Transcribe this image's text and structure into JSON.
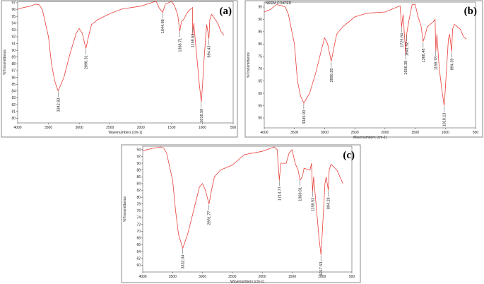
{
  "chart_data": [
    {
      "type": "line",
      "panel_label": "(a)",
      "title": "",
      "xlabel": "Wavenumbers (cm-1)",
      "ylabel": "%Transmittance",
      "xlim": [
        4000,
        500
      ],
      "ylim": [
        79.3,
        97.2
      ],
      "xticks": [
        4000,
        3500,
        3000,
        2500,
        2000,
        1500,
        1000,
        500
      ],
      "yticks": [
        80,
        81,
        82,
        83,
        84,
        85,
        86,
        87,
        88,
        89,
        90,
        91,
        92,
        93,
        94,
        95,
        96,
        97
      ],
      "color": "#e8413b",
      "grid": false,
      "x": [
        4000,
        3800,
        3700,
        3650,
        3600,
        3500,
        3450,
        3400,
        3342,
        3250,
        3150,
        3050,
        3000,
        2950,
        2900,
        2890,
        2850,
        2800,
        2700,
        2500,
        2300,
        2000,
        1800,
        1750,
        1700,
        1644,
        1600,
        1500,
        1450,
        1400,
        1368,
        1340,
        1300,
        1250,
        1200,
        1160,
        1158,
        1140,
        1100,
        1050,
        1018,
        1000,
        970,
        930,
        894,
        880,
        850,
        750,
        700,
        650
      ],
      "y": [
        96.1,
        96.5,
        96.8,
        96.7,
        96,
        92,
        88,
        85.5,
        84,
        86,
        89.5,
        92.5,
        93.2,
        92.5,
        90.5,
        90.3,
        92,
        93.8,
        94.5,
        95.4,
        96.1,
        96.5,
        97.1,
        97.2,
        96.2,
        95.6,
        96.8,
        97.2,
        96.5,
        95.2,
        92.8,
        94.2,
        94.6,
        95.5,
        96,
        96.3,
        92.2,
        94,
        90,
        85,
        82.4,
        84.5,
        89,
        93.8,
        91.7,
        94.5,
        95.3,
        94,
        92.8,
        92.2
      ],
      "peaks": [
        {
          "x": 3342.83,
          "label": "3342.83"
        },
        {
          "x": 2890.31,
          "label": "2890.31"
        },
        {
          "x": 1644.88,
          "label": "1644.88"
        },
        {
          "x": 1368.71,
          "label": "1368.71"
        },
        {
          "x": 1158.63,
          "label": "1158.63"
        },
        {
          "x": 1018.59,
          "label": "1018.59"
        },
        {
          "x": 894.43,
          "label": "894.43"
        }
      ]
    },
    {
      "type": "line",
      "panel_label": "(b)",
      "title": "",
      "annotation": "NEEM COATED",
      "xlabel": "Wavenumbers (cm-1)",
      "ylabel": "%Transmittance",
      "xlim": [
        4000,
        500
      ],
      "ylim": [
        46,
        97
      ],
      "xticks": [
        4000,
        3500,
        3000,
        2500,
        2000,
        1500,
        1000,
        500
      ],
      "yticks": [
        50,
        55,
        60,
        65,
        70,
        75,
        80,
        85,
        90,
        95
      ],
      "color": "#e8413b",
      "grid": false,
      "x": [
        4000,
        3900,
        3800,
        3700,
        3650,
        3600,
        3500,
        3450,
        3400,
        3345,
        3250,
        3150,
        3050,
        3000,
        2950,
        2890,
        2850,
        2800,
        2700,
        2500,
        2300,
        2000,
        1800,
        1750,
        1725,
        1700,
        1656,
        1641,
        1600,
        1550,
        1500,
        1450,
        1400,
        1368,
        1330,
        1300,
        1200,
        1170,
        1158,
        1140,
        1100,
        1050,
        1018,
        1000,
        950,
        930,
        894,
        880,
        850,
        750,
        700,
        650
      ],
      "y": [
        93,
        94,
        96,
        95.5,
        95,
        92,
        80,
        65,
        59,
        56,
        60,
        68,
        78,
        82.5,
        80,
        73,
        78,
        84,
        87,
        91,
        92.5,
        93,
        95,
        95.5,
        87,
        92,
        76,
        84,
        90,
        96,
        96,
        91,
        87,
        81,
        84,
        87,
        89,
        90,
        77,
        84,
        70,
        60,
        55,
        62,
        82,
        84,
        77,
        86,
        88,
        86,
        83,
        82
      ],
      "peaks": [
        {
          "x": 3345.9,
          "label": "3345.90"
        },
        {
          "x": 2890.28,
          "label": "2890.28"
        },
        {
          "x": 1725.84,
          "label": "1725.84"
        },
        {
          "x": 1656.38,
          "label": "1656.38"
        },
        {
          "x": 1641.52,
          "label": "1641.52"
        },
        {
          "x": 1368.48,
          "label": "1368.48"
        },
        {
          "x": 1158.78,
          "label": "1158.78"
        },
        {
          "x": 1018.13,
          "label": "1018.13"
        },
        {
          "x": 894.39,
          "label": "894.39"
        }
      ]
    },
    {
      "type": "line",
      "panel_label": "(c)",
      "title": "",
      "xlabel": "Wavenumbers (cm-1)",
      "ylabel": "%Transmittance",
      "xlim": [
        4000,
        500
      ],
      "ylim": [
        58,
        95
      ],
      "xticks": [
        4000,
        3500,
        3000,
        2500,
        2000,
        1500,
        1000,
        500
      ],
      "yticks": [
        60,
        62,
        64,
        66,
        68,
        70,
        72,
        74,
        76,
        78,
        80,
        82,
        84,
        86,
        88,
        90,
        92,
        94
      ],
      "color": "#e8413b",
      "grid": false,
      "x": [
        4000,
        3800,
        3700,
        3650,
        3600,
        3500,
        3450,
        3400,
        3330,
        3250,
        3150,
        3050,
        3000,
        2950,
        2891,
        2850,
        2800,
        2700,
        2500,
        2300,
        2000,
        1800,
        1750,
        1714,
        1690,
        1600,
        1550,
        1500,
        1450,
        1400,
        1368,
        1330,
        1300,
        1200,
        1175,
        1158,
        1140,
        1100,
        1050,
        1017,
        1000,
        950,
        930,
        894,
        880,
        850,
        750,
        700,
        650
      ],
      "y": [
        93.7,
        94.5,
        94.8,
        94.5,
        93,
        85,
        76,
        69,
        65,
        69,
        76,
        83,
        84,
        82,
        78,
        82,
        86,
        88,
        89.5,
        92.5,
        93.5,
        94.8,
        94,
        85,
        90,
        90,
        93,
        94,
        90,
        88,
        85,
        86,
        88.5,
        88,
        90,
        81.7,
        86,
        78,
        68,
        63,
        68,
        84,
        86,
        82,
        88,
        89.7,
        88,
        86,
        84
      ],
      "peaks": [
        {
          "x": 3332.04,
          "label": "3332.04"
        },
        {
          "x": 2891.77,
          "label": "2891.77"
        },
        {
          "x": 1714.77,
          "label": "1714.77"
        },
        {
          "x": 1368.61,
          "label": "1368.61"
        },
        {
          "x": 1158.53,
          "label": "1158.53"
        },
        {
          "x": 1017.53,
          "label": "1017.53"
        },
        {
          "x": 894.28,
          "label": "894.28"
        }
      ]
    }
  ]
}
